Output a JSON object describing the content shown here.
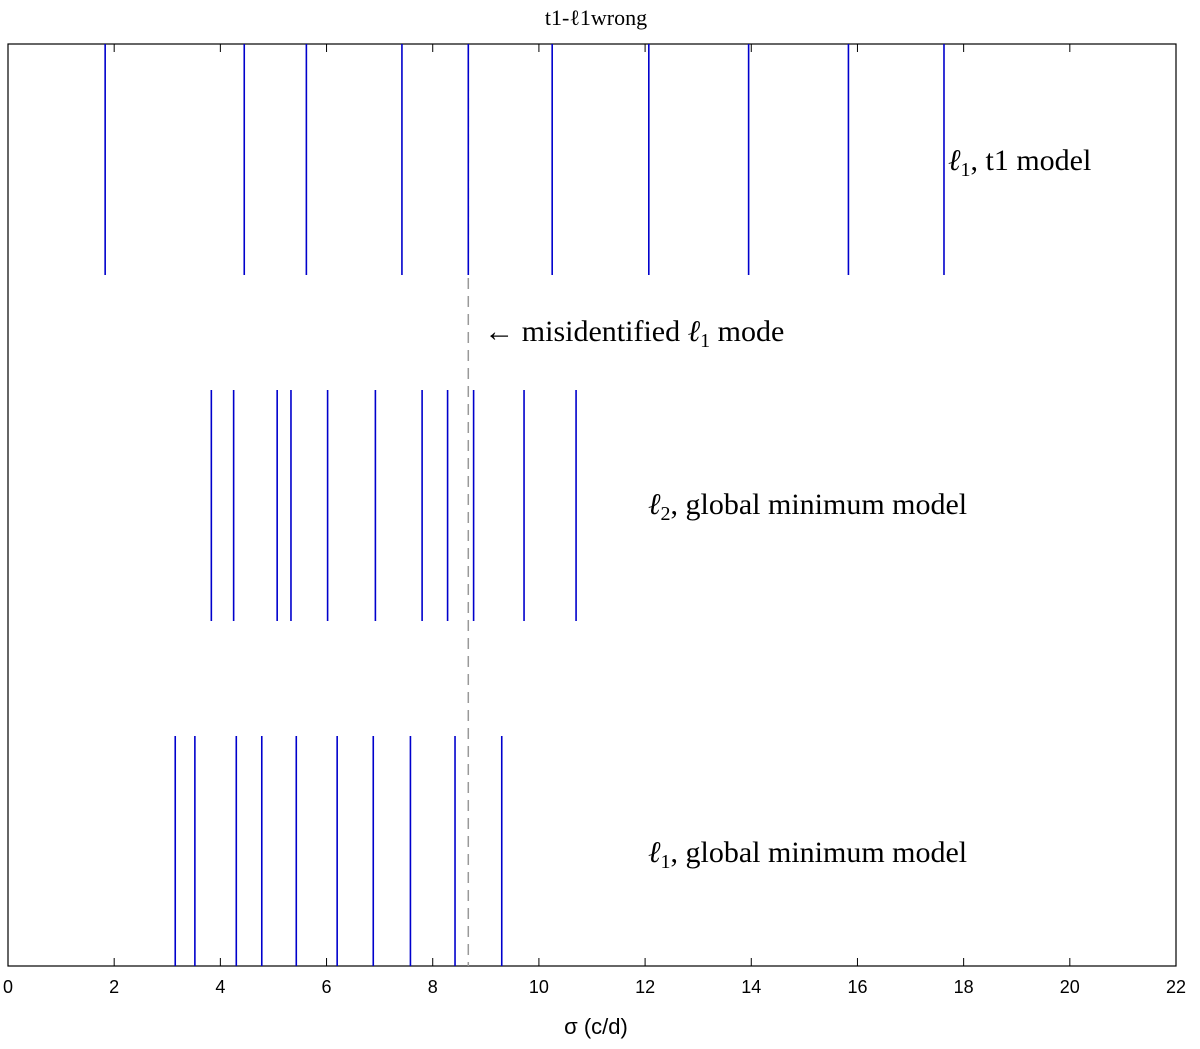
{
  "chart_data": {
    "type": "eventplot",
    "title": "t1-ℓ1wrong",
    "xlabel": "σ (c/d)",
    "ylabel": "",
    "xlim": [
      0,
      22
    ],
    "xticks": [
      0,
      2,
      4,
      6,
      8,
      10,
      12,
      14,
      16,
      18,
      20,
      22
    ],
    "grid": false,
    "line_color": "#0000cc",
    "reference_color": "#999999",
    "series": [
      {
        "label_main": "ℓ",
        "label_sub": "1",
        "label_rest": ", t1 model",
        "values": [
          1.83,
          4.45,
          5.62,
          7.42,
          8.67,
          10.25,
          12.07,
          13.95,
          15.83,
          17.63
        ]
      },
      {
        "label_main": "ℓ",
        "label_sub": "2",
        "label_rest": ", global minimum model",
        "values": [
          3.83,
          4.25,
          5.07,
          5.33,
          6.02,
          6.92,
          7.8,
          8.28,
          8.77,
          9.72,
          10.7
        ]
      },
      {
        "label_main": "ℓ",
        "label_sub": "1",
        "label_rest": ", global minimum model",
        "values": [
          3.15,
          3.52,
          4.3,
          4.78,
          5.43,
          6.2,
          6.88,
          7.58,
          8.42,
          9.3
        ]
      }
    ],
    "reference_line": {
      "x": 8.67,
      "style": "dashed",
      "annotation_arrow": "←",
      "annotation_text": " misidentified ",
      "annotation_main": "ℓ",
      "annotation_sub": "1",
      "annotation_rest": " mode"
    }
  }
}
